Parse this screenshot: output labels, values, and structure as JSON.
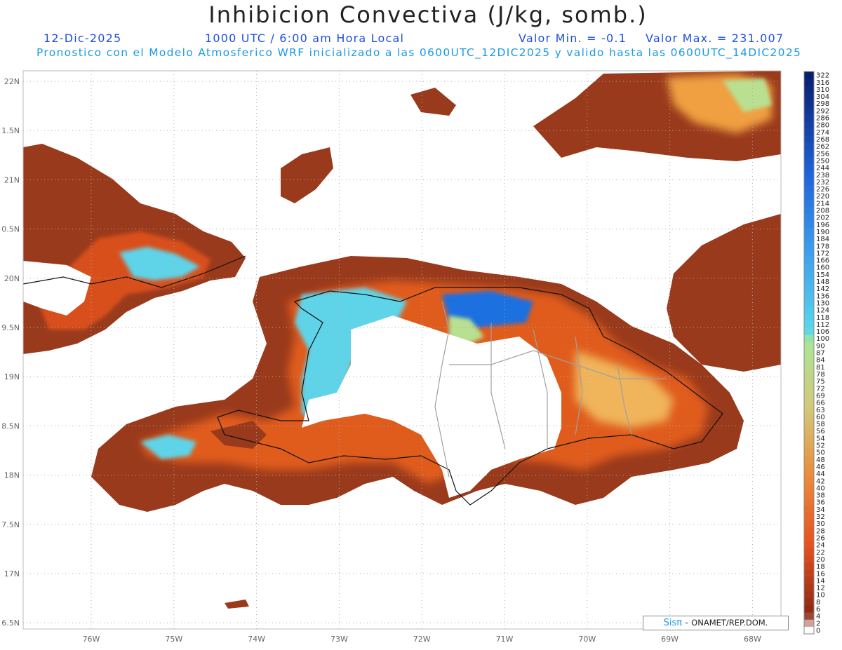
{
  "header": {
    "title": "Inhibicion Convectiva (J/kg, somb.)",
    "date": "12-Dic-2025",
    "time": "1000 UTC / 6:00 am Hora Local",
    "min_value": "Valor Min. = -0.1",
    "max_value": "Valor Max. = 231.007",
    "forecast": "Pronostico con el Modelo Atmosferico WRF inicializado a las 0600UTC_12DIC2025 y valido hasta las  0600UTC_14DIC2025"
  },
  "map": {
    "lon_labels": [
      "76W",
      "75W",
      "74W",
      "73W",
      "72W",
      "71W",
      "70W",
      "69W",
      "68W"
    ],
    "lat_labels": [
      "22N",
      "1.5N",
      "21N",
      "0.5N",
      "20N",
      "9.5N",
      "19N",
      "8.5N",
      "18N",
      "7.5N",
      "17N",
      "6.5N"
    ],
    "lon_range": [
      -76.8,
      -67.6
    ],
    "lat_range": [
      16.5,
      22.1
    ],
    "colors": {
      "ocean_land_low": "#9a3a1c",
      "mid": "#e8601c",
      "high": "#f0a040",
      "cyan": "#5fd4e8",
      "blue": "#1f6fe0"
    }
  },
  "colorbar": {
    "labels": [
      "322",
      "316",
      "310",
      "304",
      "298",
      "292",
      "286",
      "280",
      "274",
      "268",
      "262",
      "256",
      "250",
      "244",
      "238",
      "232",
      "226",
      "220",
      "214",
      "208",
      "202",
      "196",
      "190",
      "184",
      "178",
      "172",
      "166",
      "160",
      "154",
      "148",
      "142",
      "136",
      "130",
      "124",
      "118",
      "112",
      "106",
      "100",
      "90",
      "87",
      "84",
      "81",
      "78",
      "75",
      "72",
      "69",
      "66",
      "63",
      "60",
      "58",
      "56",
      "54",
      "52",
      "50",
      "48",
      "46",
      "44",
      "42",
      "40",
      "38",
      "36",
      "34",
      "32",
      "30",
      "28",
      "26",
      "24",
      "22",
      "20",
      "18",
      "16",
      "14",
      "12",
      "10",
      "8",
      "6",
      "4",
      "2",
      "0"
    ]
  },
  "credit": {
    "sis": "Sisπ",
    "text": "– ONAMET/REP.DOM."
  }
}
